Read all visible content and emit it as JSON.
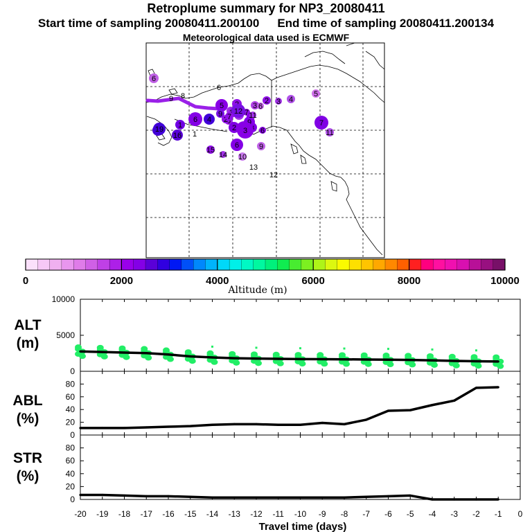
{
  "header": {
    "title": "Retroplume summary for NP3_20080411",
    "start_label": "Start time of sampling 20080411.200100",
    "end_label": "End time of sampling 20080411.200134",
    "met_label": "Meteorological data used is ECMWF"
  },
  "colorbar": {
    "label": "Altitude (m)",
    "ticks": [
      "0",
      "2000",
      "4000",
      "6000",
      "8000",
      "10000"
    ],
    "colors": [
      "#fbe0fb",
      "#f6c8f6",
      "#f0b0f0",
      "#e896ee",
      "#df7ce9",
      "#d060e6",
      "#bf40e6",
      "#ad20e8",
      "#9900ea",
      "#8400e6",
      "#5a00d8",
      "#3000e0",
      "#0018f4",
      "#0050f8",
      "#0088fc",
      "#00b4fc",
      "#00d8f8",
      "#00f0e8",
      "#00f8c4",
      "#00f8a0",
      "#00f07c",
      "#10ec50",
      "#48ec30",
      "#7cf020",
      "#aef418",
      "#dcf810",
      "#fafa00",
      "#fde000",
      "#ffc400",
      "#ffa800",
      "#ff8800",
      "#ff6000",
      "#ff2020",
      "#ff0080",
      "#ff10a0",
      "#f010b0",
      "#d810b0",
      "#b81098",
      "#981080",
      "#781068"
    ]
  },
  "map": {
    "labels": [
      {
        "t": "6",
        "c": "#c060e6",
        "r": 7
      },
      {
        "t": "6",
        "c": "#c060e6",
        "r": 0
      },
      {
        "t": "5",
        "c": "#d070ea",
        "r": 6
      },
      {
        "t": "9",
        "c": "#9a20e8",
        "r": 0
      },
      {
        "t": "8",
        "c": "#9a20e8",
        "r": 0
      },
      {
        "t": "5",
        "c": "#8800e6",
        "r": 9
      },
      {
        "t": "2",
        "c": "#9010e8",
        "r": 7
      },
      {
        "t": "4",
        "c": "#a030e6",
        "r": 6
      },
      {
        "t": "3",
        "c": "#b040e6",
        "r": 6
      },
      {
        "t": "2",
        "c": "#9010e8",
        "r": 6
      },
      {
        "t": "3",
        "c": "#a030e6",
        "r": 5
      },
      {
        "t": "4",
        "c": "#b050e8",
        "r": 6
      },
      {
        "t": "6",
        "c": "#c060e6",
        "r": 5
      },
      {
        "t": "7",
        "c": "#9010e8",
        "r": 5
      },
      {
        "t": "13",
        "c": "#4800d8",
        "r": 8
      },
      {
        "t": "1",
        "c": "#7000e4",
        "r": 7
      },
      {
        "t": "6",
        "c": "#8400e6",
        "r": 10
      },
      {
        "t": "4",
        "c": "#4000d8",
        "r": 8
      },
      {
        "t": "9",
        "c": "#7810e4",
        "r": 6
      },
      {
        "t": "6",
        "c": "#9a20e8",
        "r": 6
      },
      {
        "t": "2",
        "c": "#8000e4",
        "r": 8
      },
      {
        "t": "6",
        "c": "#a030e8",
        "r": 7
      },
      {
        "t": "7",
        "c": "#8800e6",
        "r": 11
      },
      {
        "t": "2",
        "c": "#b048e6",
        "r": 5
      },
      {
        "t": "3",
        "c": "#8000e4",
        "r": 7
      },
      {
        "t": "1",
        "c": "#8800e6",
        "r": 6
      },
      {
        "t": "10",
        "c": "#9a20e8",
        "r": 7
      },
      {
        "t": "2",
        "c": "#9010e8",
        "r": 6
      },
      {
        "t": "10",
        "c": "#8800e6",
        "r": 6
      },
      {
        "t": "9",
        "c": "#8400e6",
        "r": 8
      },
      {
        "t": "3",
        "c": "#8800e6",
        "r": 12
      },
      {
        "t": "12",
        "c": "#7810e4",
        "r": 10
      },
      {
        "t": "7",
        "c": "#9010e8",
        "r": 6
      },
      {
        "t": "11",
        "c": "#a030e6",
        "r": 5
      },
      {
        "t": "6",
        "c": "#8800e6",
        "r": 5
      },
      {
        "t": "7",
        "c": "#8000e4",
        "r": 10
      },
      {
        "t": "11",
        "c": "#b050e8",
        "r": 6
      },
      {
        "t": "19",
        "c": "#4000d8",
        "r": 9
      },
      {
        "t": "16",
        "c": "#5800d8",
        "r": 8
      },
      {
        "t": "1",
        "c": "#6000dc",
        "r": 0
      },
      {
        "t": "15",
        "c": "#9010e8",
        "r": 6
      },
      {
        "t": "14",
        "c": "#a030e6",
        "r": 5
      },
      {
        "t": "6",
        "c": "#8400e6",
        "r": 9
      },
      {
        "t": "9",
        "c": "#c060e8",
        "r": 6
      },
      {
        "t": "10",
        "c": "#c878ec",
        "r": 6
      },
      {
        "t": "13",
        "c": "#b048e6",
        "r": 0
      },
      {
        "t": "12",
        "c": "#b048e6",
        "r": 0
      }
    ],
    "trail_color": "#9a20e8"
  },
  "chart_data": [
    {
      "type": "line",
      "panel": "ALT",
      "ylabel": "ALT (m)",
      "ylabel_lines": [
        "ALT",
        "(m)"
      ],
      "ylim": [
        0,
        10000
      ],
      "yticks": [
        "0",
        "5000",
        "10000"
      ],
      "x": [
        -20,
        -19,
        -18,
        -17,
        -16,
        -15,
        -14,
        -13,
        -12,
        -11,
        -10,
        -9,
        -8,
        -7,
        -6,
        -5,
        -4,
        -3,
        -2,
        -1
      ],
      "series": [
        {
          "name": "mean altitude",
          "values": [
            2750,
            2680,
            2600,
            2520,
            2330,
            2070,
            1920,
            1820,
            1770,
            1730,
            1700,
            1680,
            1660,
            1640,
            1610,
            1570,
            1520,
            1440,
            1400,
            1360
          ]
        }
      ],
      "scatter_color": "#22ee66"
    },
    {
      "type": "line",
      "panel": "ABL",
      "ylabel": "ABL (%)",
      "ylabel_lines": [
        "ABL",
        "(%)"
      ],
      "ylim": [
        0,
        100
      ],
      "yticks": [
        "0",
        "20",
        "40",
        "60",
        "80"
      ],
      "x": [
        -20,
        -19,
        -18,
        -17,
        -16,
        -15,
        -14,
        -13,
        -12,
        -11,
        -10,
        -9,
        -8,
        -7,
        -6,
        -5,
        -4,
        -3,
        -2,
        -1
      ],
      "series": [
        {
          "name": "fraction in ABL",
          "values": [
            11,
            11,
            11,
            12,
            13,
            14,
            16,
            17,
            17,
            16,
            16,
            19,
            17,
            24,
            38,
            39,
            47,
            54,
            74,
            75
          ]
        }
      ]
    },
    {
      "type": "line",
      "panel": "STR",
      "ylabel": "STR (%)",
      "ylabel_lines": [
        "STR",
        "(%)"
      ],
      "ylim": [
        0,
        100
      ],
      "yticks": [
        "0",
        "20",
        "40",
        "60",
        "80"
      ],
      "x": [
        -20,
        -19,
        -18,
        -17,
        -16,
        -15,
        -14,
        -13,
        -12,
        -11,
        -10,
        -9,
        -8,
        -7,
        -6,
        -5,
        -4,
        -3,
        -2,
        -1
      ],
      "series": [
        {
          "name": "fraction in stratosphere",
          "values": [
            7,
            7,
            6,
            5,
            5,
            4,
            3,
            3,
            3,
            3,
            3,
            3,
            3,
            4,
            5,
            6,
            0,
            0,
            0,
            0
          ]
        }
      ],
      "xlabel": "Travel time (days)",
      "xticks": [
        "-20",
        "-19",
        "-18",
        "-17",
        "-16",
        "-15",
        "-14",
        "-13",
        "-12",
        "-11",
        "-10",
        "-9",
        "-8",
        "-7",
        "-6",
        "-5",
        "-4",
        "-3",
        "-2",
        "-1",
        "0"
      ]
    }
  ]
}
